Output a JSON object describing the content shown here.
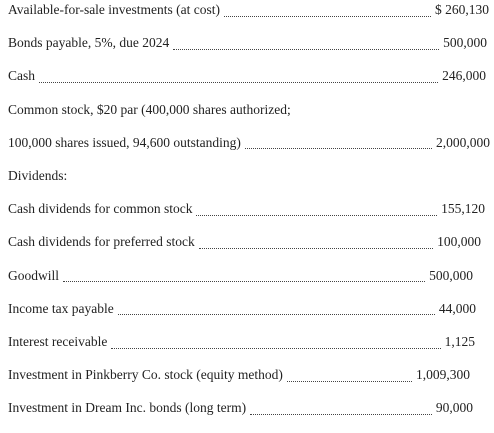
{
  "rows": [
    {
      "label": "Available-for-sale investments (at cost)",
      "amount": "$ 260,130"
    },
    {
      "label": "Bonds payable, 5%, due 2024",
      "amount": "500,000"
    },
    {
      "label": "Cash",
      "amount": "246,000"
    },
    {
      "label": "Common stock, $20 par (400,000 shares authorized;"
    },
    {
      "label": "100,000 shares issued, 94,600 outstanding)",
      "amount": "2,000,000"
    },
    {
      "label": "Dividends:"
    },
    {
      "label": "Cash dividends for common stock",
      "amount": "155,120"
    },
    {
      "label": "Cash dividends for preferred stock",
      "amount": "100,000"
    },
    {
      "label": "Goodwill",
      "amount": "500,000"
    },
    {
      "label": "Income tax payable",
      "amount": "44,000"
    },
    {
      "label": "Interest receivable",
      "amount": "1,125"
    },
    {
      "label": "Investment in Pinkberry Co. stock (equity method)",
      "amount": "1,009,300"
    },
    {
      "label": "Investment in Dream Inc. bonds (long term)",
      "amount": "90,000"
    }
  ]
}
